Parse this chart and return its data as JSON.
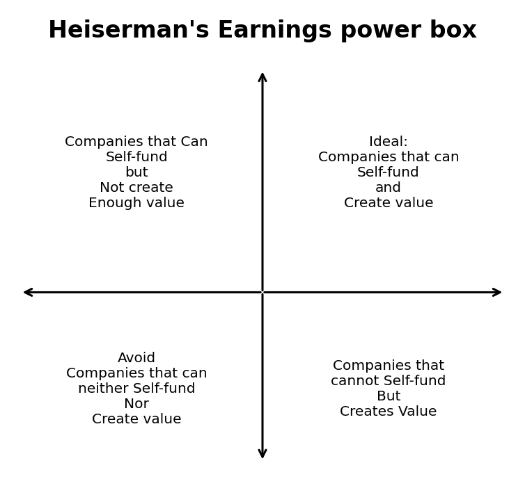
{
  "title": "Heiserman's Earnings power box",
  "title_fontsize": 24,
  "title_fontweight": "bold",
  "background_color": "#ffffff",
  "text_color": "#000000",
  "quadrant_texts": {
    "top_left": "Companies that Can\nSelf-fund\nbut\nNot create\nEnough value",
    "top_right": "Ideal:\nCompanies that can\nSelf-fund\nand\nCreate value",
    "bottom_left": "Avoid\nCompanies that can\nneither Self-fund\nNor\nCreate value",
    "bottom_right": "Companies that\ncannot Self-fund\nBut\nCreates Value"
  },
  "quadrant_text_fontsize": 14.5,
  "quadrant_text_fontweight": "normal",
  "axis_color": "#000000",
  "arrow_linewidth": 2.2,
  "mutation_scale": 18,
  "figsize": [
    7.54,
    6.89
  ],
  "dpi": 100
}
